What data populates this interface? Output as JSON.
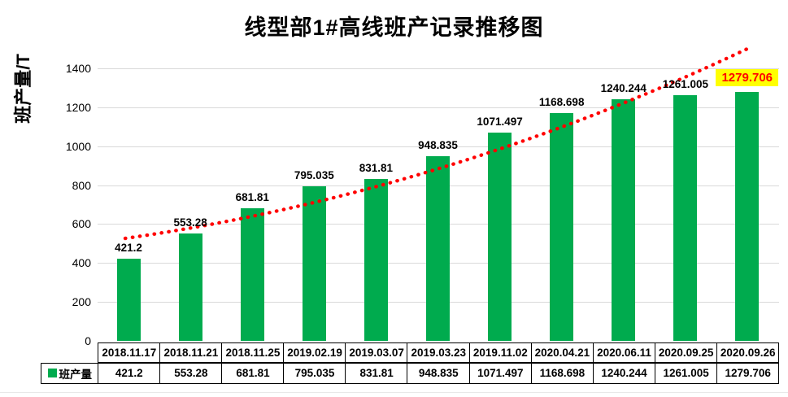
{
  "chart_data": {
    "type": "bar",
    "title": "线型部1#高线班产记录推移图",
    "ylabel": "班产量/T",
    "xlabel": "",
    "categories": [
      "2018.11.17",
      "2018.11.21",
      "2018.11.25",
      "2019.02.19",
      "2019.03.07",
      "2019.03.23",
      "2019.11.02",
      "2020.04.21",
      "2020.06.11",
      "2020.09.25",
      "2020.09.26"
    ],
    "series": [
      {
        "name": "班产量",
        "values": [
          421.2,
          553.28,
          681.81,
          795.035,
          831.81,
          948.835,
          1071.497,
          1168.698,
          1240.244,
          1261.005,
          1279.706
        ]
      }
    ],
    "value_labels": [
      "421.2",
      "553.28",
      "681.81",
      "795.035",
      "831.81",
      "948.835",
      "1071.497",
      "1168.698",
      "1240.244",
      "1261.005",
      "1279.706"
    ],
    "ylim": [
      0,
      1400
    ],
    "yticks": [
      "0",
      "200",
      "400",
      "600",
      "800",
      "1000",
      "1200",
      "1400"
    ],
    "grid": true,
    "legend_position": "table-left",
    "colors": {
      "bar": "#00ab4e",
      "trendline": "#ff0000",
      "gridline": "#d9d9d9",
      "highlight_bg": "#ffff00",
      "highlight_text": "#ff0000",
      "table_border": "#000000"
    },
    "trendline": {
      "style": "dotted",
      "color": "#ff0000"
    },
    "highlight_last_label": true
  }
}
